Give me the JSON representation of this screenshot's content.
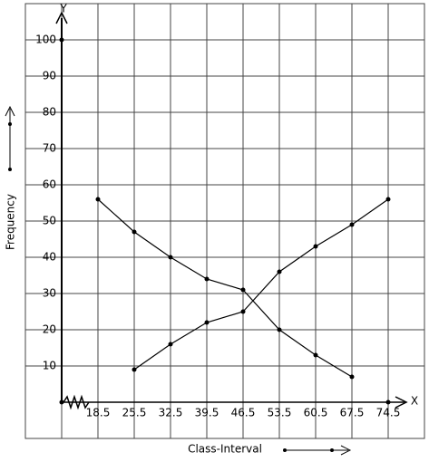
{
  "chart_data": {
    "type": "line",
    "x_label": "X",
    "y_label": "Y",
    "x_axis_title": "Class-Interval",
    "y_axis_title": "Frequency",
    "xlim": [
      4.5,
      81.5
    ],
    "ylim": [
      -10,
      110
    ],
    "xticks": [
      18.5,
      25.5,
      32.5,
      39.5,
      46.5,
      53.5,
      60.5,
      67.5,
      74.5
    ],
    "yticks": [
      10,
      20,
      30,
      40,
      50,
      60,
      70,
      80,
      90,
      100
    ],
    "grid": true,
    "series": [
      {
        "color": "#000000",
        "x": [
          18.5,
          25.5,
          32.5,
          39.5,
          46.5,
          53.5,
          60.5,
          67.5
        ],
        "values": [
          56,
          47,
          40,
          34,
          31,
          20,
          13,
          7
        ]
      },
      {
        "color": "#000000",
        "x": [
          25.5,
          32.5,
          39.5,
          46.5,
          53.5,
          60.5,
          67.5,
          74.5
        ],
        "values": [
          9,
          16,
          22,
          25,
          36,
          43,
          49,
          56
        ]
      }
    ]
  }
}
